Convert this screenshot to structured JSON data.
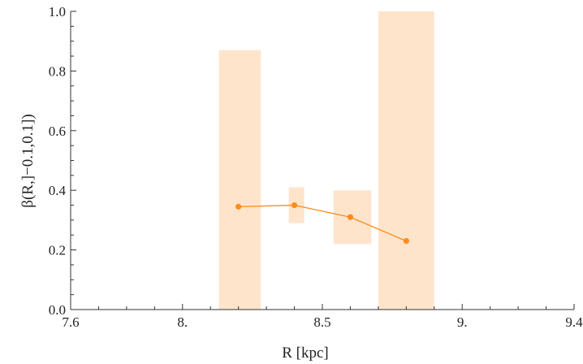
{
  "chart_data": {
    "type": "line",
    "xlabel": "R [kpc]",
    "ylabel": "β(R,]−0.1,0.1])",
    "xlim": [
      7.6,
      9.4
    ],
    "ylim": [
      0.0,
      1.0
    ],
    "x_ticks": [
      {
        "value": 7.6,
        "label": "7.6"
      },
      {
        "value": 8.0,
        "label": "8."
      },
      {
        "value": 8.5,
        "label": "8.5"
      },
      {
        "value": 9.0,
        "label": "9."
      },
      {
        "value": 9.4,
        "label": "9.4"
      }
    ],
    "y_ticks": [
      {
        "value": 0.0,
        "label": "0.0"
      },
      {
        "value": 0.2,
        "label": "0.2"
      },
      {
        "value": 0.4,
        "label": "0.4"
      },
      {
        "value": 0.6,
        "label": "0.6"
      },
      {
        "value": 0.8,
        "label": "0.8"
      },
      {
        "value": 1.0,
        "label": "1.0"
      }
    ],
    "series": [
      {
        "x": [
          8.2,
          8.4,
          8.6,
          8.8
        ],
        "y": [
          0.345,
          0.35,
          0.31,
          0.23
        ],
        "color": "#ff8c1a"
      }
    ],
    "error_boxes": [
      {
        "x": [
          8.13,
          8.28
        ],
        "y": [
          0.0,
          0.87
        ]
      },
      {
        "x": [
          8.38,
          8.435
        ],
        "y": [
          0.29,
          0.41
        ]
      },
      {
        "x": [
          8.54,
          8.675
        ],
        "y": [
          0.22,
          0.4
        ]
      },
      {
        "x": [
          8.7,
          8.9
        ],
        "y": [
          0.0,
          1.0
        ]
      }
    ],
    "box_color": "#ffe4cc",
    "grid": false
  }
}
